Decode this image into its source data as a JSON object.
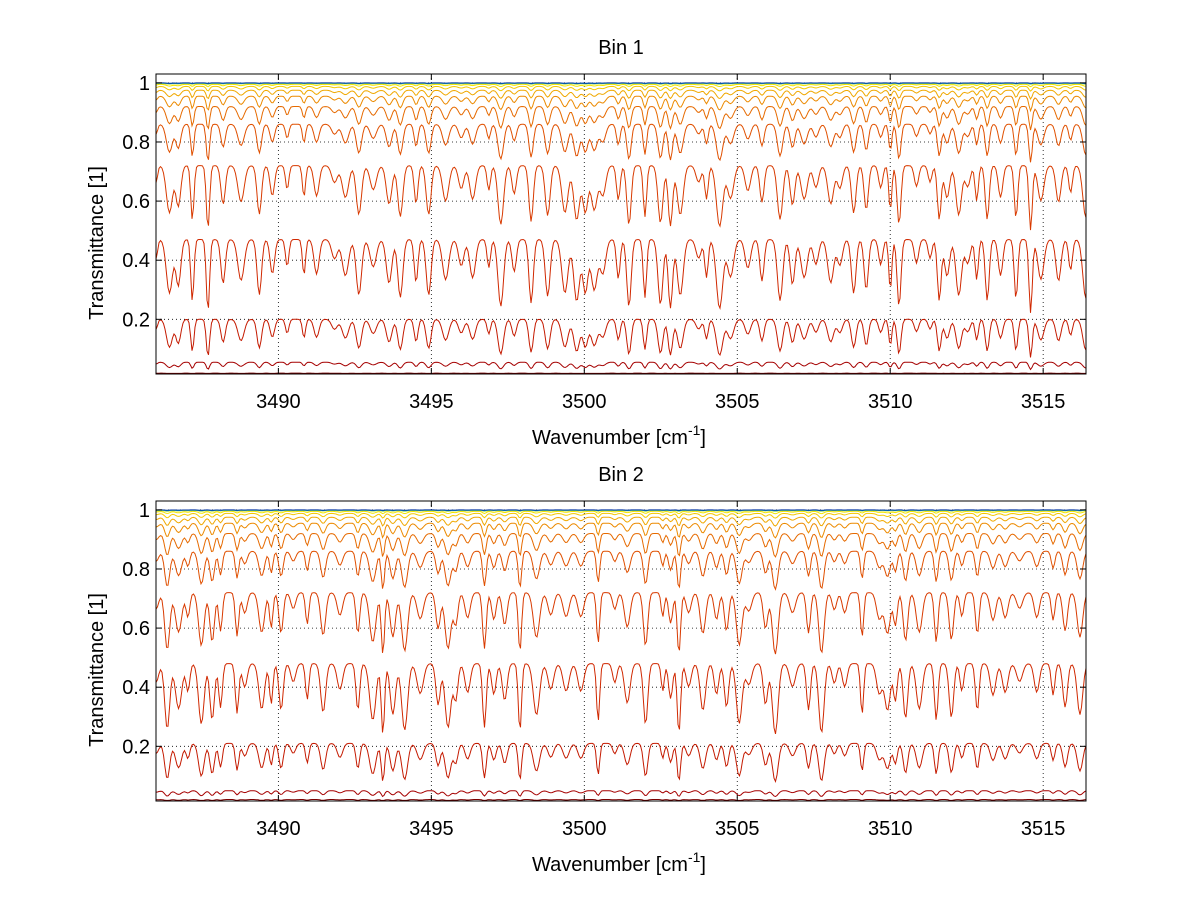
{
  "chart_data": [
    {
      "type": "line",
      "title": "Bin 1",
      "xlabel": "Wavenumber [cm",
      "xlabel_sup": "-1",
      "xlabel_tail": "]",
      "ylabel": "Transmittance [1]",
      "xlim": [
        3486.0,
        3516.4
      ],
      "ylim": [
        0.015,
        1.03
      ],
      "xticks": [
        3490,
        3495,
        3500,
        3505,
        3510,
        3515
      ],
      "xtick_labels": [
        "3490",
        "3495",
        "3500",
        "3505",
        "3510",
        "3515"
      ],
      "yticks": [
        0.2,
        0.4,
        0.6,
        0.8,
        1.0
      ],
      "ytick_labels": [
        "0.2",
        "0.4",
        "0.6",
        "0.8",
        "1"
      ],
      "grid": true,
      "series": [
        {
          "color": "#7a0000",
          "baseline": 0.018,
          "depth": 0.003
        },
        {
          "color": "#a50000",
          "baseline": 0.055,
          "depth": 0.025
        },
        {
          "color": "#c41a00",
          "baseline": 0.2,
          "depth": 0.13
        },
        {
          "color": "#d02800",
          "baseline": 0.47,
          "depth": 0.25
        },
        {
          "color": "#d83a00",
          "baseline": 0.72,
          "depth": 0.22
        },
        {
          "color": "#e05000",
          "baseline": 0.86,
          "depth": 0.13
        },
        {
          "color": "#e66a00",
          "baseline": 0.92,
          "depth": 0.08
        },
        {
          "color": "#ec8a00",
          "baseline": 0.955,
          "depth": 0.05
        },
        {
          "color": "#f0a800",
          "baseline": 0.975,
          "depth": 0.03
        },
        {
          "color": "#f4c800",
          "baseline": 0.988,
          "depth": 0.016
        },
        {
          "color": "#f2e600",
          "baseline": 0.995,
          "depth": 0.008
        },
        {
          "color": "#c8e020",
          "baseline": 0.998,
          "depth": 0.003
        },
        {
          "color": "#20c0d0",
          "baseline": 0.999,
          "depth": 0.002
        },
        {
          "color": "#0030a0",
          "baseline": 1.0,
          "depth": 0.0015
        }
      ]
    },
    {
      "type": "line",
      "title": "Bin 2",
      "xlabel": "Wavenumber [cm",
      "xlabel_sup": "-1",
      "xlabel_tail": "]",
      "ylabel": "Transmittance [1]",
      "xlim": [
        3486.0,
        3516.4
      ],
      "ylim": [
        0.015,
        1.03
      ],
      "xticks": [
        3490,
        3495,
        3500,
        3505,
        3510,
        3515
      ],
      "xtick_labels": [
        "3490",
        "3495",
        "3500",
        "3505",
        "3510",
        "3515"
      ],
      "yticks": [
        0.2,
        0.4,
        0.6,
        0.8,
        1.0
      ],
      "ytick_labels": [
        "0.2",
        "0.4",
        "0.6",
        "0.8",
        "1"
      ],
      "grid": true,
      "series": [
        {
          "color": "#7a0000",
          "baseline": 0.02,
          "depth": 0.004
        },
        {
          "color": "#a50000",
          "baseline": 0.05,
          "depth": 0.02
        },
        {
          "color": "#c41a00",
          "baseline": 0.21,
          "depth": 0.13
        },
        {
          "color": "#d02800",
          "baseline": 0.48,
          "depth": 0.24
        },
        {
          "color": "#d83a00",
          "baseline": 0.72,
          "depth": 0.21
        },
        {
          "color": "#e05000",
          "baseline": 0.86,
          "depth": 0.13
        },
        {
          "color": "#e66a00",
          "baseline": 0.92,
          "depth": 0.08
        },
        {
          "color": "#ec8a00",
          "baseline": 0.955,
          "depth": 0.05
        },
        {
          "color": "#f0a800",
          "baseline": 0.975,
          "depth": 0.03
        },
        {
          "color": "#f4c800",
          "baseline": 0.988,
          "depth": 0.016
        },
        {
          "color": "#f2e600",
          "baseline": 0.995,
          "depth": 0.008
        },
        {
          "color": "#c8e020",
          "baseline": 0.998,
          "depth": 0.003
        },
        {
          "color": "#20c0d0",
          "baseline": 0.999,
          "depth": 0.002
        },
        {
          "color": "#0030a0",
          "baseline": 1.0,
          "depth": 0.0015
        }
      ]
    }
  ]
}
